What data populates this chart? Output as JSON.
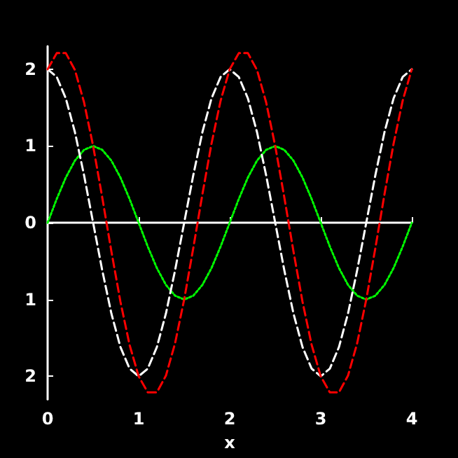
{
  "chart_data": {
    "type": "line",
    "xlabel": "x",
    "x": [
      0,
      0.1,
      0.2,
      0.3,
      0.4,
      0.5,
      0.6,
      0.7,
      0.8,
      0.9,
      1,
      1.1,
      1.2,
      1.3,
      1.4,
      1.5,
      1.6,
      1.7,
      1.8,
      1.9,
      2,
      2.1,
      2.2,
      2.3,
      2.4,
      2.5,
      2.6,
      2.7,
      2.8,
      2.9,
      3,
      3.1,
      3.2,
      3.3,
      3.4,
      3.5,
      3.6,
      3.7,
      3.8,
      3.9,
      4
    ],
    "series": [
      {
        "color": "#00ff00",
        "line_style": "dotted",
        "values": [
          0,
          0.31,
          0.59,
          0.81,
          0.95,
          1,
          0.95,
          0.81,
          0.59,
          0.31,
          0,
          -0.31,
          -0.59,
          -0.81,
          -0.95,
          -1,
          -0.95,
          -0.81,
          -0.59,
          -0.31,
          0,
          0.31,
          0.59,
          0.81,
          0.95,
          1,
          0.95,
          0.81,
          0.59,
          0.31,
          0,
          -0.31,
          -0.59,
          -0.81,
          -0.95,
          -1,
          -0.95,
          -0.81,
          -0.59,
          -0.31,
          0
        ]
      },
      {
        "color": "#ffffff",
        "line_style": "dashed",
        "values": [
          2,
          1.9,
          1.62,
          1.18,
          0.62,
          0,
          -0.62,
          -1.18,
          -1.62,
          -1.9,
          -2,
          -1.9,
          -1.62,
          -1.18,
          -0.62,
          0,
          0.62,
          1.18,
          1.62,
          1.9,
          2,
          1.9,
          1.62,
          1.18,
          0.62,
          0,
          -0.62,
          -1.18,
          -1.62,
          -1.9,
          -2,
          -1.9,
          -1.62,
          -1.18,
          -0.62,
          0,
          0.62,
          1.18,
          1.62,
          1.9,
          2
        ]
      },
      {
        "color": "#ff0000",
        "line_style": "dashed",
        "values": [
          2,
          2.21,
          2.21,
          1.99,
          1.57,
          1,
          0.33,
          -0.37,
          -1.03,
          -1.59,
          -2,
          -2.21,
          -2.21,
          -1.99,
          -1.57,
          -1,
          -0.33,
          0.37,
          1.03,
          1.59,
          2,
          2.21,
          2.21,
          1.99,
          1.57,
          1,
          0.33,
          -0.37,
          -1.03,
          -1.59,
          -2,
          -2.21,
          -2.21,
          -1.99,
          -1.57,
          -1,
          -0.33,
          0.37,
          1.03,
          1.59,
          2
        ]
      }
    ],
    "xlim": [
      0,
      4
    ],
    "xticks": [
      0,
      1,
      2,
      3,
      4
    ],
    "ylim": [
      -2.3,
      2.3
    ],
    "yticks": [
      {
        "value": -2,
        "label": "2"
      },
      {
        "value": -1,
        "label": "1"
      },
      0,
      1,
      2
    ],
    "marker": "none"
  }
}
